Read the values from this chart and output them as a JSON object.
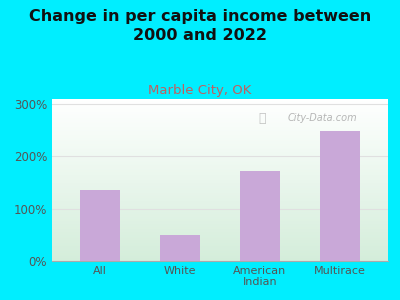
{
  "title": "Change in per capita income between\n2000 and 2022",
  "subtitle": "Marble City, OK",
  "categories": [
    "All",
    "White",
    "American\nIndian",
    "Multirace"
  ],
  "values": [
    135,
    50,
    172,
    248
  ],
  "bar_color": "#c9a8d8",
  "background_outer": "#00eeff",
  "yticks": [
    0,
    100,
    200,
    300
  ],
  "ytick_labels": [
    "0%",
    "100%",
    "200%",
    "300%"
  ],
  "ylim": [
    0,
    310
  ],
  "title_fontsize": 11.5,
  "subtitle_fontsize": 9.5,
  "subtitle_color": "#c06060",
  "watermark": "City-Data.com",
  "title_color": "#111111",
  "tick_color": "#555555",
  "grid_color": "#e0e0e0"
}
